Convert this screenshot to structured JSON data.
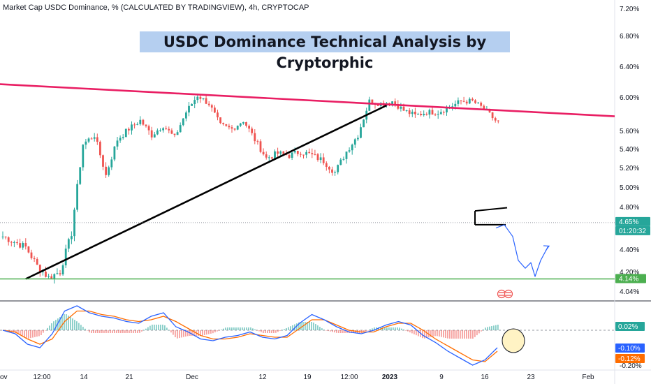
{
  "header": {
    "symbol_line": "Market Cap USDC Dominance, % (CALCULATED BY TRADINGVIEW), 4h, CRYPTOCAP"
  },
  "title_banner": "USDC Dominance Technical Analysis by Cryptorphic",
  "colors": {
    "up": "#26a69a",
    "down": "#ef5350",
    "resistance_line": "#e91e63",
    "trend_line": "#000000",
    "support_line": "#4caf50",
    "projection": "#2962ff",
    "macd": "#2962ff",
    "signal": "#ff6d00",
    "banner_bg": "#b5cff0"
  },
  "chart_data": {
    "type": "candlestick",
    "title": "USDC Dominance Technical Analysis by Cryptorphic",
    "interval": "4h",
    "ylim": [
      4.0,
      7.3
    ],
    "y_ticks": [
      "7.20%",
      "6.80%",
      "6.40%",
      "6.00%",
      "5.60%",
      "5.40%",
      "5.20%",
      "5.00%",
      "4.80%",
      "4.40%",
      "4.20%",
      "4.04%"
    ],
    "x_ticks": [
      "ov",
      "12:00",
      "14",
      "21",
      "Dec",
      "12",
      "19",
      "12:00",
      "2023",
      "9",
      "16",
      "23",
      "Feb"
    ],
    "x_ticks_bold": [
      "2023"
    ],
    "price_path": [
      [
        "ov",
        4.52
      ],
      [
        "ov",
        4.47
      ],
      [
        "ov",
        4.42
      ],
      [
        "ov",
        4.25
      ],
      [
        "ov",
        4.15
      ],
      [
        "ov",
        4.2
      ],
      [
        "12:00",
        4.55
      ],
      [
        "12:00",
        5.45
      ],
      [
        "12:00",
        5.55
      ],
      [
        "12:00",
        5.12
      ],
      [
        "12:00",
        5.5
      ],
      [
        "14",
        5.62
      ],
      [
        "14",
        5.72
      ],
      [
        "14",
        5.55
      ],
      [
        "14",
        5.66
      ],
      [
        "14",
        5.52
      ],
      [
        "21",
        5.82
      ],
      [
        "21",
        6.02
      ],
      [
        "21",
        5.92
      ],
      [
        "21",
        5.66
      ],
      [
        "21",
        5.62
      ],
      [
        "Dec",
        5.72
      ],
      [
        "Dec",
        5.5
      ],
      [
        "Dec",
        5.3
      ],
      [
        "Dec",
        5.35
      ],
      [
        "Dec",
        5.33
      ],
      [
        "Dec",
        5.37
      ],
      [
        "12",
        5.33
      ],
      [
        "12",
        5.27
      ],
      [
        "12",
        5.15
      ],
      [
        "12",
        5.37
      ],
      [
        "12",
        5.55
      ],
      [
        "19",
        5.95
      ],
      [
        "19",
        5.92
      ],
      [
        "19",
        5.95
      ],
      [
        "19",
        5.84
      ],
      [
        "19",
        5.78
      ],
      [
        "12:00",
        5.82
      ],
      [
        "12:00",
        5.82
      ],
      [
        "12:00",
        5.88
      ],
      [
        "12:00",
        5.95
      ],
      [
        "2023",
        5.95
      ],
      [
        "2023",
        5.86
      ],
      [
        "2023",
        5.72
      ],
      [
        "2023",
        5.65
      ],
      [
        "2023",
        5.45
      ],
      [
        "9",
        5.3
      ],
      [
        "9",
        5.05
      ],
      [
        "9",
        4.98
      ],
      [
        "16",
        4.72
      ],
      [
        "16",
        4.65
      ],
      [
        "16",
        4.68
      ]
    ],
    "current_price": "4.65%",
    "countdown": "01:20:32",
    "support_level": "4.14%",
    "lines": [
      {
        "name": "descending resistance",
        "from": [
          -2,
          6.17
        ],
        "to": [
          185,
          5.77
        ]
      },
      {
        "name": "ascending trendline",
        "from": [
          8,
          4.14
        ],
        "to": [
          134,
          5.9
        ]
      },
      {
        "name": "horizontal support",
        "level": 4.14
      },
      {
        "name": "bear flag upper",
        "from": [
          144,
          4.76
        ],
        "to": [
          154,
          4.79
        ]
      },
      {
        "name": "bear flag lower",
        "from": [
          144,
          4.63
        ],
        "to": [
          154,
          4.63
        ]
      }
    ],
    "projection_path": [
      [
        150,
        4.62
      ],
      [
        152,
        4.58
      ],
      [
        154,
        4.53
      ],
      [
        156,
        4.3
      ],
      [
        158,
        4.24
      ],
      [
        160,
        4.18
      ],
      [
        162,
        4.3
      ],
      [
        164,
        4.4
      ]
    ],
    "indicator": {
      "type": "macd",
      "ylim": [
        -0.25,
        0.12
      ],
      "y_ticks": [
        "0.02%",
        "-0.20%"
      ],
      "histogram_label": "0.02%",
      "macd_label": "-0.10%",
      "signal_label": "-0.12%",
      "macd_values": [
        0.0,
        -0.02,
        -0.08,
        -0.1,
        -0.02,
        0.11,
        0.14,
        0.1,
        0.08,
        0.07,
        0.05,
        0.04,
        0.08,
        0.1,
        0.02,
        -0.01,
        -0.05,
        -0.06,
        -0.04,
        -0.03,
        -0.01,
        -0.04,
        -0.05,
        -0.03,
        0.04,
        0.09,
        0.06,
        0.02,
        -0.01,
        -0.02,
        0.0,
        0.03,
        0.05,
        0.03,
        -0.03,
        -0.07,
        -0.12,
        -0.16,
        -0.2,
        -0.17,
        -0.1
      ],
      "signal_values": [
        0.0,
        -0.01,
        -0.05,
        -0.08,
        -0.05,
        0.05,
        0.11,
        0.11,
        0.09,
        0.08,
        0.06,
        0.05,
        0.06,
        0.08,
        0.05,
        0.01,
        -0.03,
        -0.05,
        -0.05,
        -0.04,
        -0.02,
        -0.03,
        -0.04,
        -0.04,
        0.01,
        0.06,
        0.06,
        0.03,
        0.0,
        -0.01,
        -0.01,
        0.02,
        0.04,
        0.04,
        0.0,
        -0.05,
        -0.09,
        -0.13,
        -0.17,
        -0.18,
        -0.12
      ]
    }
  }
}
